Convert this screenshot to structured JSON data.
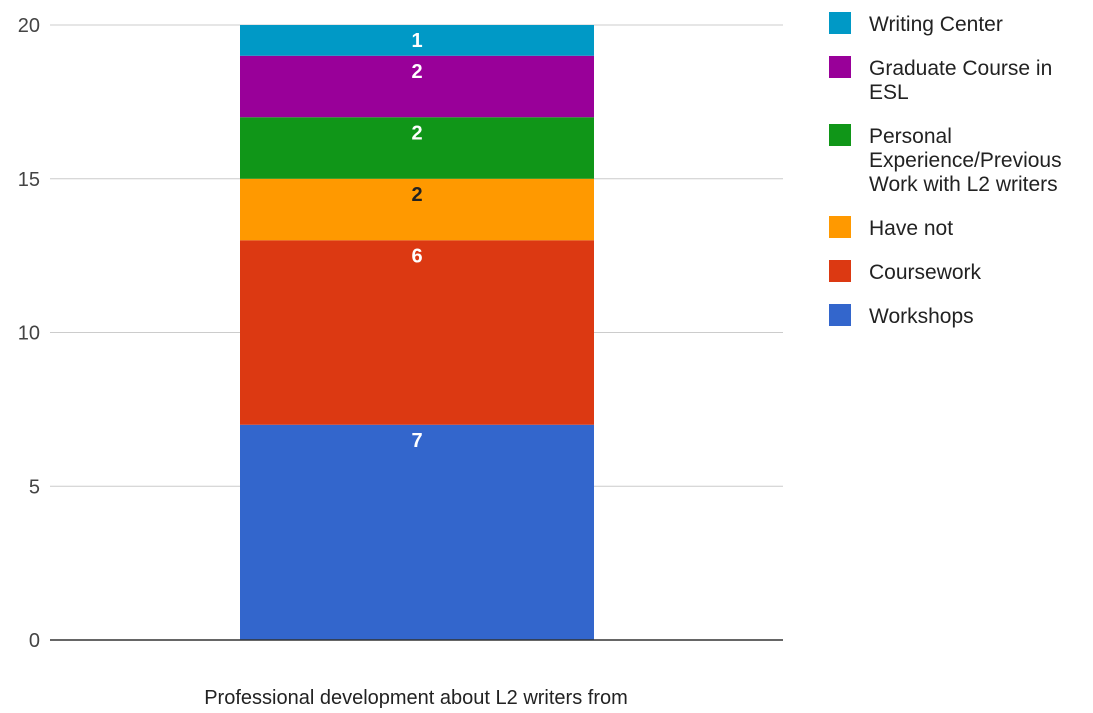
{
  "chart_data": {
    "type": "bar",
    "stacked": true,
    "categories": [
      ""
    ],
    "xlabel": "Professional development about L2 writers from",
    "ylabel": "",
    "ylim": [
      0,
      20
    ],
    "yticks": [
      0,
      5,
      10,
      15,
      20
    ],
    "grid": true,
    "legend_position": "right",
    "series": [
      {
        "name": "Workshops",
        "values": [
          7
        ],
        "color": "#3366cc",
        "label_color": "#ffffff"
      },
      {
        "name": "Coursework",
        "values": [
          6
        ],
        "color": "#dc3912",
        "label_color": "#ffffff"
      },
      {
        "name": "Have not",
        "values": [
          2
        ],
        "color": "#ff9900",
        "label_color": "#222222"
      },
      {
        "name": "Personal Experience/Previous Work with L2 writers",
        "values": [
          2
        ],
        "color": "#109618",
        "label_color": "#ffffff"
      },
      {
        "name": "Graduate Course in ESL",
        "values": [
          2
        ],
        "color": "#990099",
        "label_color": "#ffffff"
      },
      {
        "name": "Writing Center",
        "values": [
          1
        ],
        "color": "#0099c6",
        "label_color": "#ffffff"
      }
    ],
    "legend_order": [
      "Writing Center",
      "Graduate Course in ESL",
      "Personal Experience/Previous Work with L2 writers",
      "Have not",
      "Coursework",
      "Workshops"
    ]
  }
}
